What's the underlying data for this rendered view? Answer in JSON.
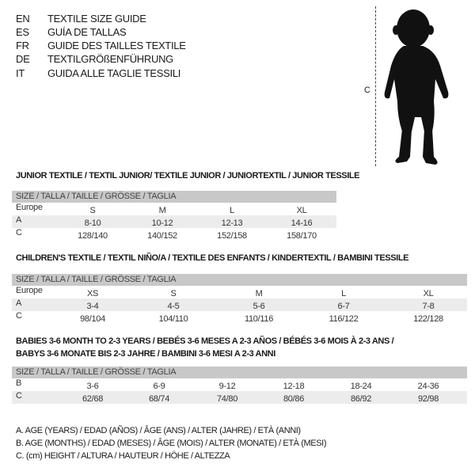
{
  "languages": [
    {
      "code": "EN",
      "text": "TEXTILE SIZE GUIDE"
    },
    {
      "code": "ES",
      "text": "GUÍA DE TALLAS"
    },
    {
      "code": "FR",
      "text": "GUIDE DES TAILLES TEXTILE"
    },
    {
      "code": "DE",
      "text": "TEXTILGRÖßENFÜHRUNG"
    },
    {
      "code": "IT",
      "text": "GUIDA ALLE TAGLIE TESSILI"
    }
  ],
  "figure": {
    "dimension_label": "C",
    "silhouette": "baby-silhouette"
  },
  "tables": [
    {
      "title": "JUNIOR TEXTILE / TEXTIL JUNIOR/ TEXTILE JUNIOR / JUNIORTEXTIL / JUNIOR TESSILE",
      "header": "SIZE / TALLA / TAILLE / GRÖSSE / TAGLIA",
      "rows": [
        {
          "label": "Europe",
          "cells": [
            "S",
            "M",
            "L",
            "XL"
          ]
        },
        {
          "label": "A",
          "cells": [
            "8-10",
            "10-12",
            "12-13",
            "14-16"
          ]
        },
        {
          "label": "C",
          "cells": [
            "128/140",
            "140/152",
            "152/158",
            "158/170"
          ]
        }
      ]
    },
    {
      "title": "CHILDREN'S TEXTILE / TEXTIL NIÑO/A / TEXTILE DES ENFANTS / KINDERTEXTIL / BAMBINI TESSILE",
      "header": "SIZE / TALLA / TAILLE / GRÖSSE / TAGLIA",
      "rows": [
        {
          "label": "Europe",
          "cells": [
            "XS",
            "S",
            "M",
            "L",
            "XL"
          ]
        },
        {
          "label": "A",
          "cells": [
            "3-4",
            "4-5",
            "5-6",
            "6-7",
            "7-8"
          ]
        },
        {
          "label": "C",
          "cells": [
            "98/104",
            "104/110",
            "110/116",
            "116/122",
            "122/128"
          ]
        }
      ]
    },
    {
      "title": "BABIES 3-6 MONTH TO 2-3 YEARS / BEBÉS 3-6 MESES A 2-3 AÑOS / BÉBÉS 3-6 MOIS À 2-3 ANS /",
      "title2": "BABYS 3-6 MONATE BIS 2-3 JAHRE / BAMBINI 3-6 MESI A 2-3 ANNI",
      "header": "SIZE / TALLA / TAILLE / GRÖSSE / TAGLIA",
      "rows": [
        {
          "label": "B",
          "cells": [
            "3-6",
            "6-9",
            "9-12",
            "12-18",
            "18-24",
            "24-36"
          ]
        },
        {
          "label": "C",
          "cells": [
            "62/68",
            "68/74",
            "74/80",
            "80/86",
            "86/92",
            "92/98"
          ]
        }
      ]
    }
  ],
  "legend": [
    "A. AGE (YEARS) / EDAD (AÑOS) / ÂGE (ANS) / ALTER (JAHRE) / ETÀ (ANNI)",
    "B. AGE (MONTHS) / EDAD (MESES) / ÂGE (MOIS) / ALTER (MONATE) / ETÀ (MESI)",
    "C. (cm) HEIGHT / ALTURA / HAUTEUR / HÖHE / ALTEZZA"
  ]
}
